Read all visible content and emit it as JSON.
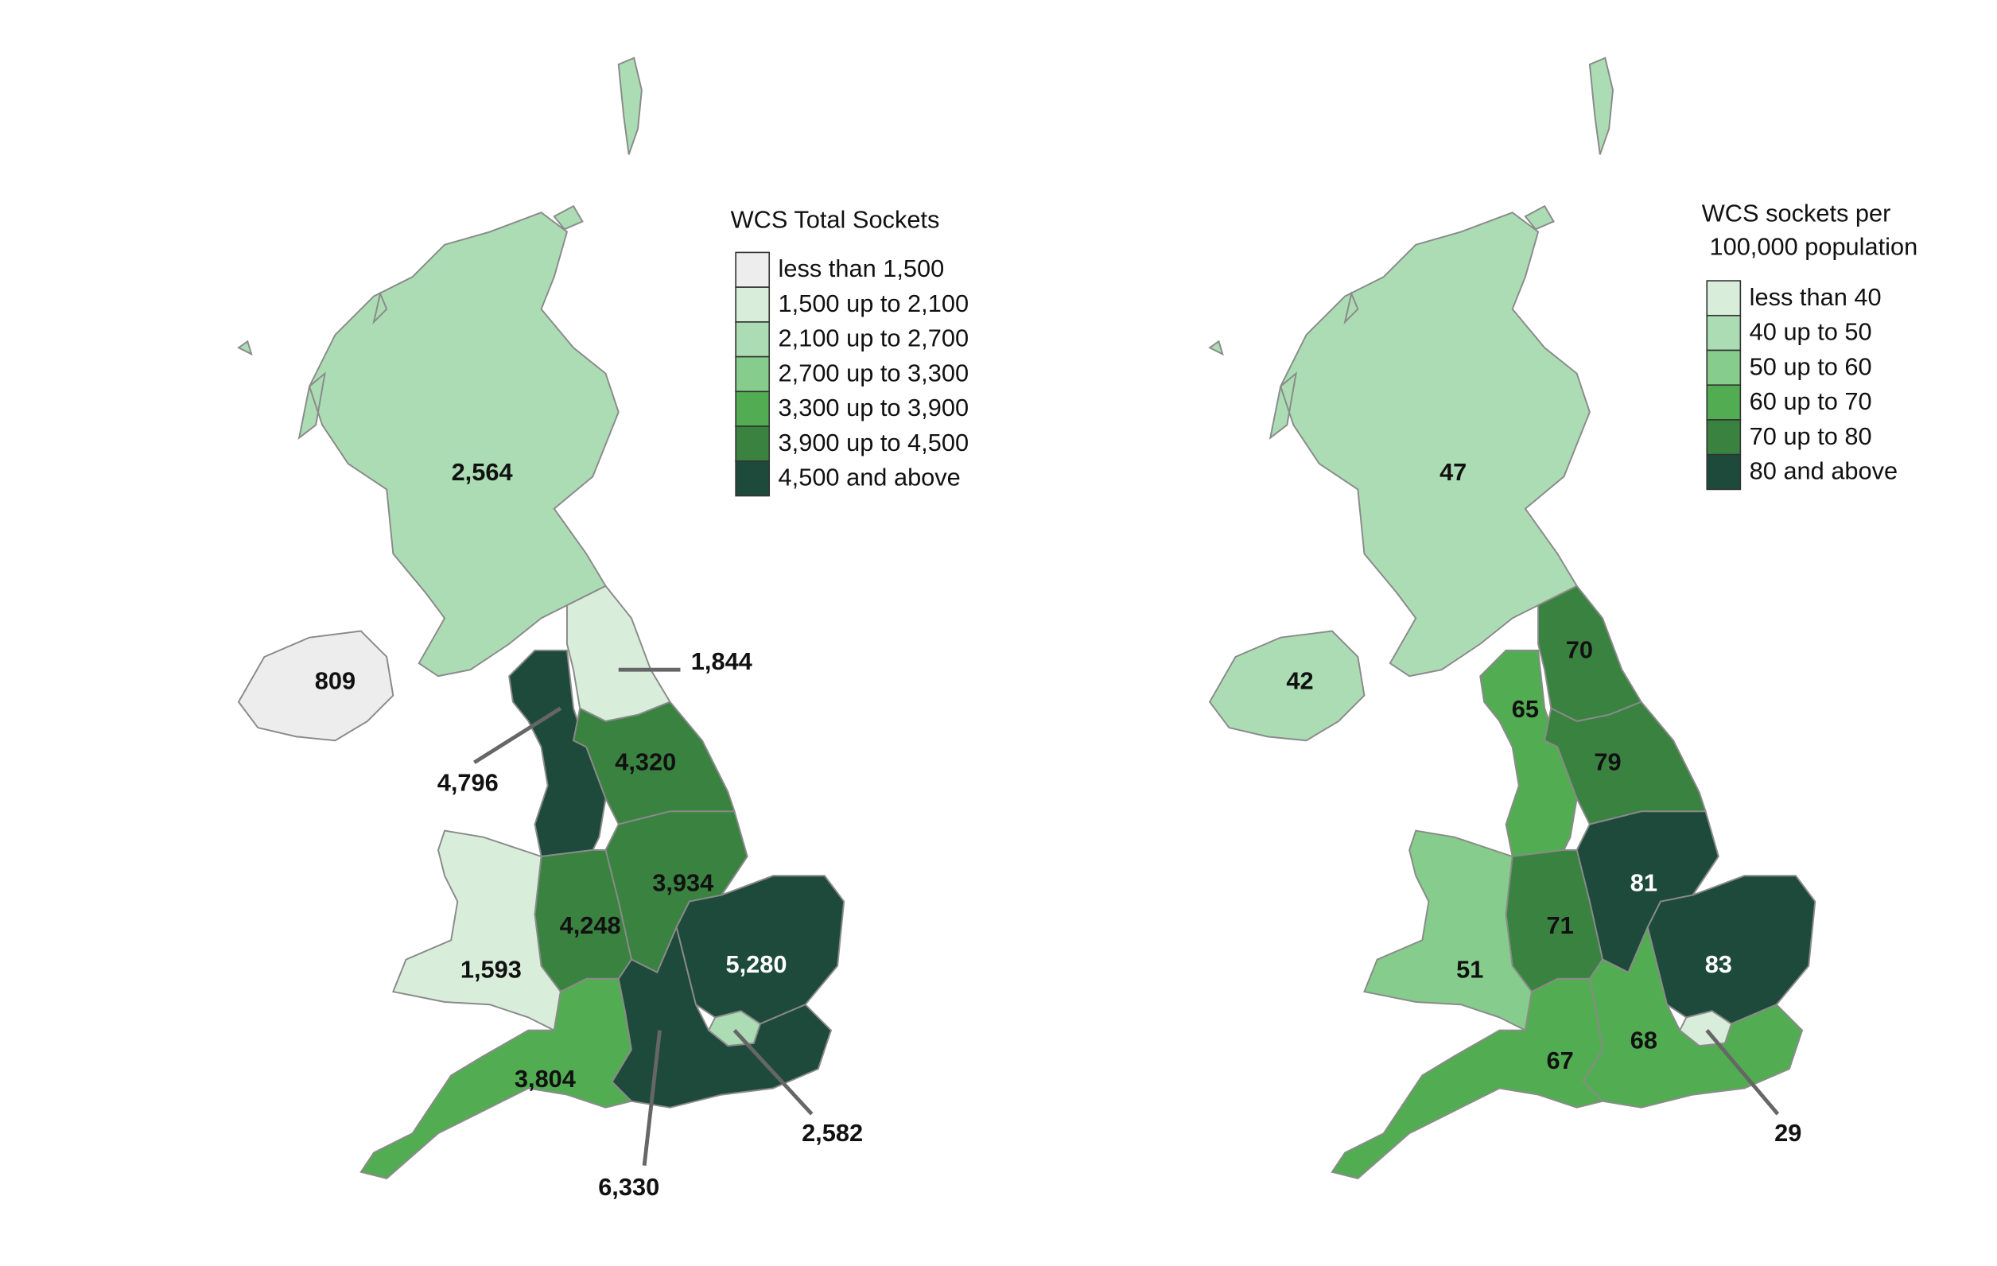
{
  "maps": [
    {
      "legend": {
        "title": [
          "WCS Total Sockets"
        ],
        "items": [
          {
            "label": "less than 1,500",
            "color": "#ededee"
          },
          {
            "label": "1,500 up to 2,100",
            "color": "#d8eedb"
          },
          {
            "label": "2,100 up to 2,700",
            "color": "#acdcb4"
          },
          {
            "label": "2,700 up to 3,300",
            "color": "#86cc8c"
          },
          {
            "label": "3,300 up to 3,900",
            "color": "#52ad52"
          },
          {
            "label": "3,900 up to 4,500",
            "color": "#3a8240"
          },
          {
            "label": "4,500 and above",
            "color": "#1e4a3c"
          }
        ]
      },
      "regions": [
        {
          "label": "2,564",
          "color": "#acdcb4"
        },
        {
          "label": "809",
          "color": "#ededee"
        },
        {
          "label": "1,844",
          "color": "#d8eedb"
        },
        {
          "label": "4,796",
          "color": "#1e4a3c"
        },
        {
          "label": "4,320",
          "color": "#3a8240"
        },
        {
          "label": "3,934",
          "color": "#3a8240"
        },
        {
          "label": "4,248",
          "color": "#3a8240"
        },
        {
          "label": "1,593",
          "color": "#d8eedb"
        },
        {
          "label": "5,280",
          "color": "#1e4a3c"
        },
        {
          "label": "3,804",
          "color": "#52ad52"
        },
        {
          "label": "6,330",
          "color": "#1e4a3c"
        },
        {
          "label": "2,582",
          "color": "#acdcb4"
        }
      ]
    },
    {
      "legend": {
        "title": [
          "WCS sockets per",
          "100,000 population"
        ],
        "items": [
          {
            "label": "less than 40",
            "color": "#d8eedb"
          },
          {
            "label": "40 up to 50",
            "color": "#acdcb4"
          },
          {
            "label": "50 up to 60",
            "color": "#86cc8c"
          },
          {
            "label": "60 up to 70",
            "color": "#52ad52"
          },
          {
            "label": "70 up to 80",
            "color": "#3a8240"
          },
          {
            "label": "80 and above",
            "color": "#1e4a3c"
          }
        ]
      },
      "regions": [
        {
          "label": "47",
          "color": "#acdcb4"
        },
        {
          "label": "42",
          "color": "#acdcb4"
        },
        {
          "label": "70",
          "color": "#3a8240"
        },
        {
          "label": "65",
          "color": "#52ad52"
        },
        {
          "label": "79",
          "color": "#3a8240"
        },
        {
          "label": "81",
          "color": "#1e4a3c"
        },
        {
          "label": "71",
          "color": "#3a8240"
        },
        {
          "label": "51",
          "color": "#86cc8c"
        },
        {
          "label": "83",
          "color": "#1e4a3c"
        },
        {
          "label": "67",
          "color": "#52ad52"
        },
        {
          "label": "68",
          "color": "#52ad52"
        },
        {
          "label": "29",
          "color": "#d8eedb"
        }
      ]
    }
  ]
}
